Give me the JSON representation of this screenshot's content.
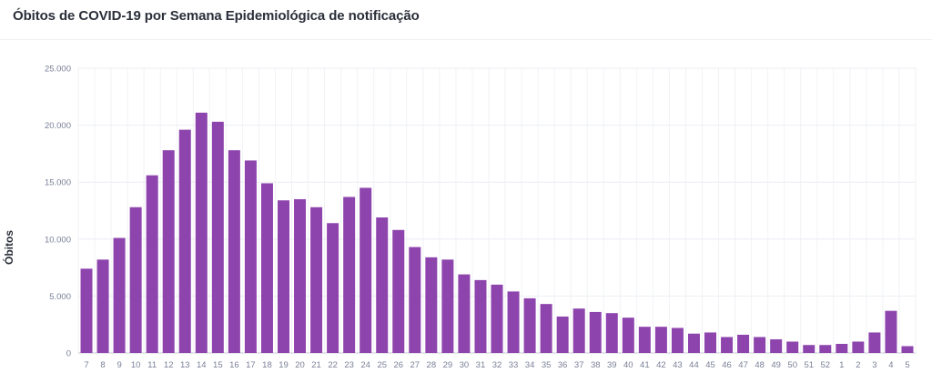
{
  "chart_data": {
    "type": "bar",
    "title": "Óbitos de COVID-19 por Semana Epidemiológica de notificação",
    "xlabel": "",
    "ylabel": "Óbitos",
    "ylim": [
      0,
      25000
    ],
    "yticks": [
      0,
      5000,
      10000,
      15000,
      20000,
      25000
    ],
    "ytick_labels": [
      "0",
      "5.000",
      "10.000",
      "15.000",
      "20.000",
      "25.000"
    ],
    "grid": true,
    "bar_color": "#8e44ad",
    "categories": [
      "7",
      "8",
      "9",
      "10",
      "11",
      "12",
      "13",
      "14",
      "15",
      "16",
      "17",
      "18",
      "19",
      "20",
      "21",
      "22",
      "23",
      "24",
      "25",
      "26",
      "27",
      "28",
      "29",
      "30",
      "31",
      "32",
      "33",
      "34",
      "35",
      "36",
      "37",
      "38",
      "39",
      "40",
      "41",
      "42",
      "43",
      "44",
      "45",
      "46",
      "47",
      "48",
      "49",
      "50",
      "51",
      "52",
      "1",
      "2",
      "3",
      "4",
      "5"
    ],
    "values": [
      7400,
      8200,
      10100,
      12800,
      15600,
      17800,
      19600,
      21100,
      20300,
      17800,
      16900,
      14900,
      13400,
      13500,
      12800,
      11400,
      13700,
      14500,
      11900,
      10800,
      9300,
      8400,
      8200,
      6900,
      6400,
      6000,
      5400,
      4800,
      4300,
      3200,
      3900,
      3600,
      3500,
      3100,
      2300,
      2300,
      2200,
      1700,
      1800,
      1400,
      1600,
      1400,
      1200,
      1000,
      700,
      700,
      800,
      1000,
      1800,
      3700,
      600
    ]
  }
}
